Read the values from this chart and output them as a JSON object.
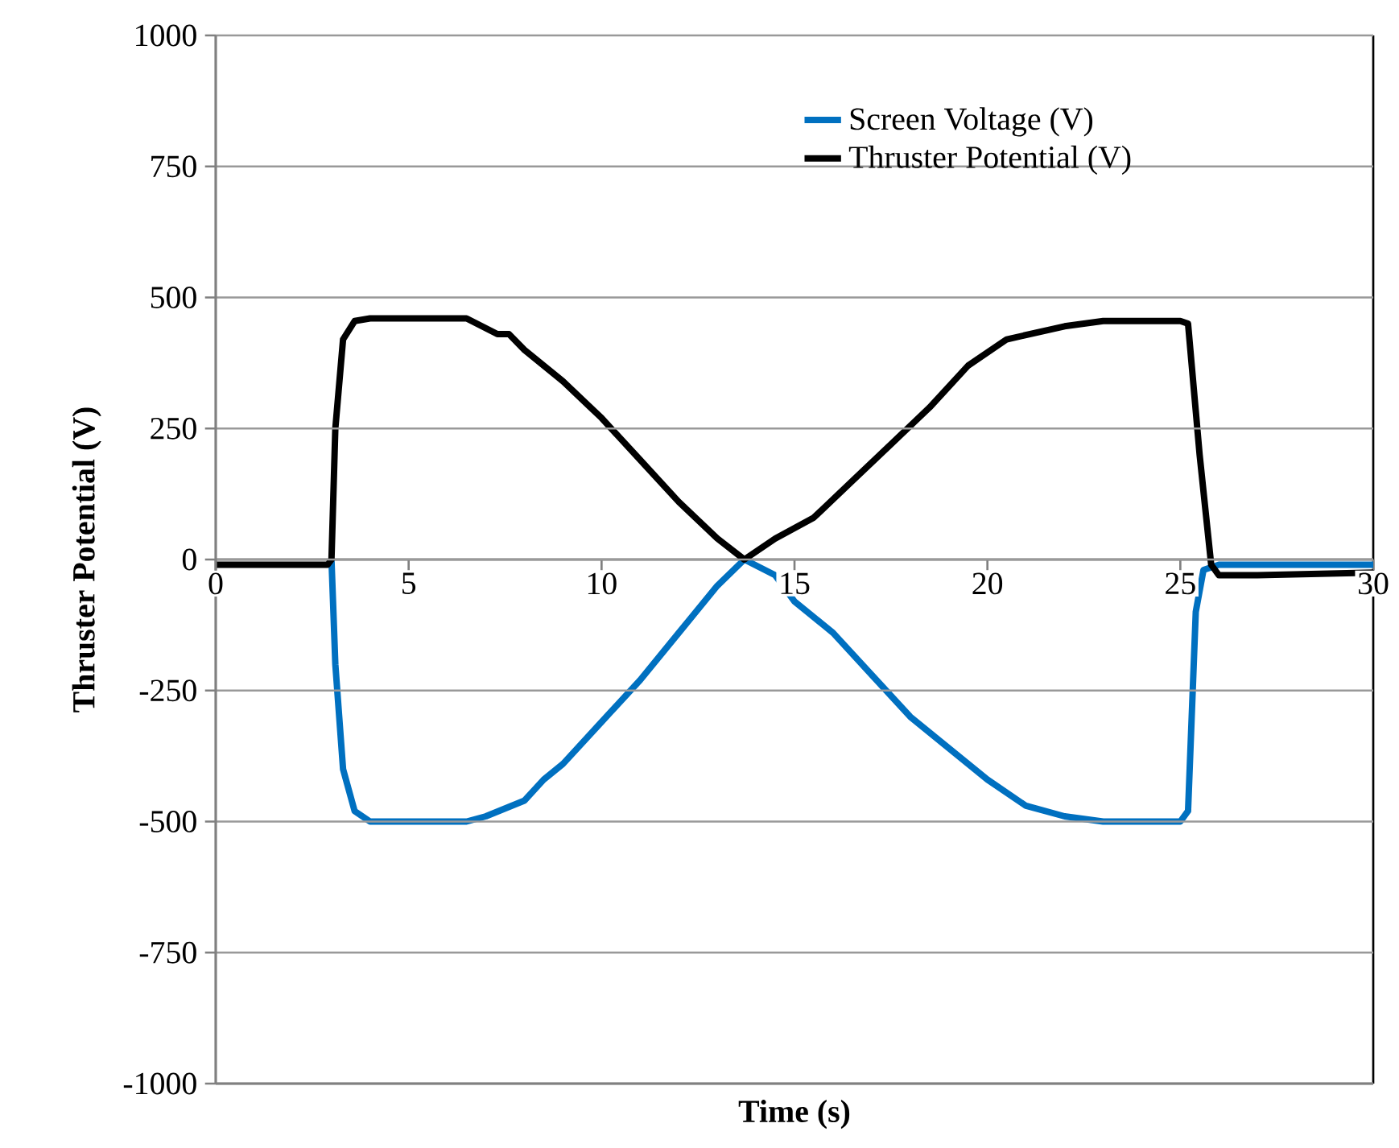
{
  "chart_data": {
    "type": "line",
    "xlabel": "Time (s)",
    "ylabel": "Thruster Potential (V)",
    "xlim": [
      0,
      30
    ],
    "xticks": [
      0,
      5,
      10,
      15,
      20,
      25,
      30
    ],
    "ylim": [
      -1000,
      1000
    ],
    "yticks": [
      -1000,
      -750,
      -500,
      -250,
      0,
      250,
      500,
      750,
      1000
    ],
    "grid": "y",
    "legend": "top right",
    "marker": "none",
    "line_style": "solid",
    "series": [
      {
        "name": "Screen Voltage (V)",
        "color": "#0070c0",
        "x": [
          3.0,
          3.1,
          3.3,
          3.6,
          4,
          6.5,
          7,
          7.5,
          8,
          8.5,
          9,
          10,
          11,
          12,
          13,
          13.7,
          14.5,
          15,
          16,
          17,
          18,
          19,
          20,
          21,
          22,
          23,
          25,
          25.2,
          25.4,
          25.6,
          26,
          30
        ],
        "values": [
          0,
          -200,
          -400,
          -480,
          -500,
          -500,
          -490,
          -475,
          -460,
          -420,
          -390,
          -310,
          -230,
          -140,
          -50,
          0,
          -30,
          -80,
          -140,
          -220,
          -300,
          -360,
          -420,
          -470,
          -490,
          -500,
          -500,
          -480,
          -100,
          -20,
          -10,
          -10
        ]
      },
      {
        "name": "Thruster Potential (V)",
        "color": "#000000",
        "x": [
          0,
          1,
          2,
          2.9,
          3.0,
          3.1,
          3.3,
          3.6,
          4,
          6.5,
          7.3,
          7.6,
          8,
          9,
          10,
          11,
          12,
          13,
          13.7,
          14.5,
          15.5,
          16.5,
          17.5,
          18.5,
          19.5,
          20.5,
          22,
          23,
          25,
          25.2,
          25.5,
          25.8,
          26,
          27,
          30
        ],
        "values": [
          -10,
          -10,
          -10,
          -10,
          0,
          250,
          420,
          455,
          460,
          460,
          430,
          430,
          400,
          340,
          270,
          190,
          110,
          40,
          0,
          40,
          80,
          150,
          220,
          290,
          370,
          420,
          445,
          455,
          455,
          450,
          200,
          -10,
          -30,
          -30,
          -25
        ]
      }
    ]
  }
}
